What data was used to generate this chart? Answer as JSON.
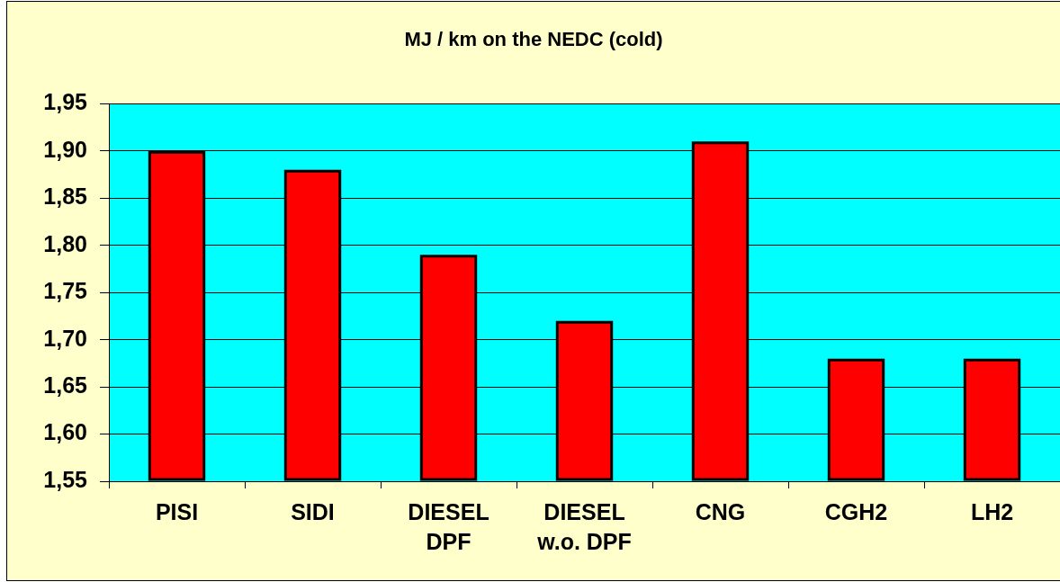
{
  "chart_data": {
    "type": "bar",
    "title": "MJ / km on the NEDC (cold)",
    "categories": [
      "PISI",
      "SIDI",
      "DIESEL\nDPF",
      "DIESEL\nw.o. DPF",
      "CNG",
      "CGH2",
      "LH2"
    ],
    "values": [
      1.9,
      1.88,
      1.79,
      1.72,
      1.91,
      1.68,
      1.68
    ],
    "color": "#ff0000",
    "ylim": [
      1.55,
      1.95
    ],
    "yticks": [
      {
        "value": 1.55,
        "label": "1,55"
      },
      {
        "value": 1.6,
        "label": "1,60"
      },
      {
        "value": 1.65,
        "label": "1,65"
      },
      {
        "value": 1.7,
        "label": "1,70"
      },
      {
        "value": 1.75,
        "label": "1,75"
      },
      {
        "value": 1.8,
        "label": "1,80"
      },
      {
        "value": 1.85,
        "label": "1,85"
      },
      {
        "value": 1.9,
        "label": "1,90"
      },
      {
        "value": 1.95,
        "label": "1,95"
      }
    ],
    "grid": "y"
  }
}
